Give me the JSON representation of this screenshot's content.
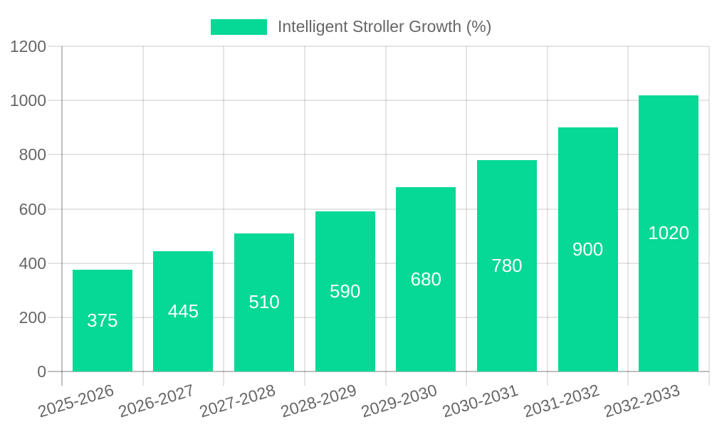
{
  "legend": {
    "label": "Intelligent Stroller Growth (%)",
    "swatch_color": "#06d895"
  },
  "chart_data": {
    "type": "bar",
    "categories": [
      "2025-2026",
      "2026-2027",
      "2027-2028",
      "2028-2029",
      "2029-2030",
      "2030-2031",
      "2031-2032",
      "2032-2033"
    ],
    "series": [
      {
        "name": "Intelligent Stroller Growth (%)",
        "values": [
          375,
          445,
          510,
          590,
          680,
          780,
          900,
          1020
        ],
        "color": "#06d895"
      }
    ],
    "xlabel": "",
    "ylabel": "",
    "ylim": [
      0,
      1200
    ],
    "y_ticks": [
      0,
      200,
      400,
      600,
      800,
      1000,
      1200
    ],
    "grid": true,
    "legend_position": "top-center",
    "x_label_rotation_deg": -17,
    "value_label_position": "inside-center",
    "colors": {
      "bar": "#06d895",
      "value_label": "#ffffff",
      "axis_text": "#666666",
      "grid_line": "rgba(0,0,0,0.10)",
      "axis_line": "rgba(0,0,0,0.25)",
      "background": "#ffffff"
    }
  }
}
